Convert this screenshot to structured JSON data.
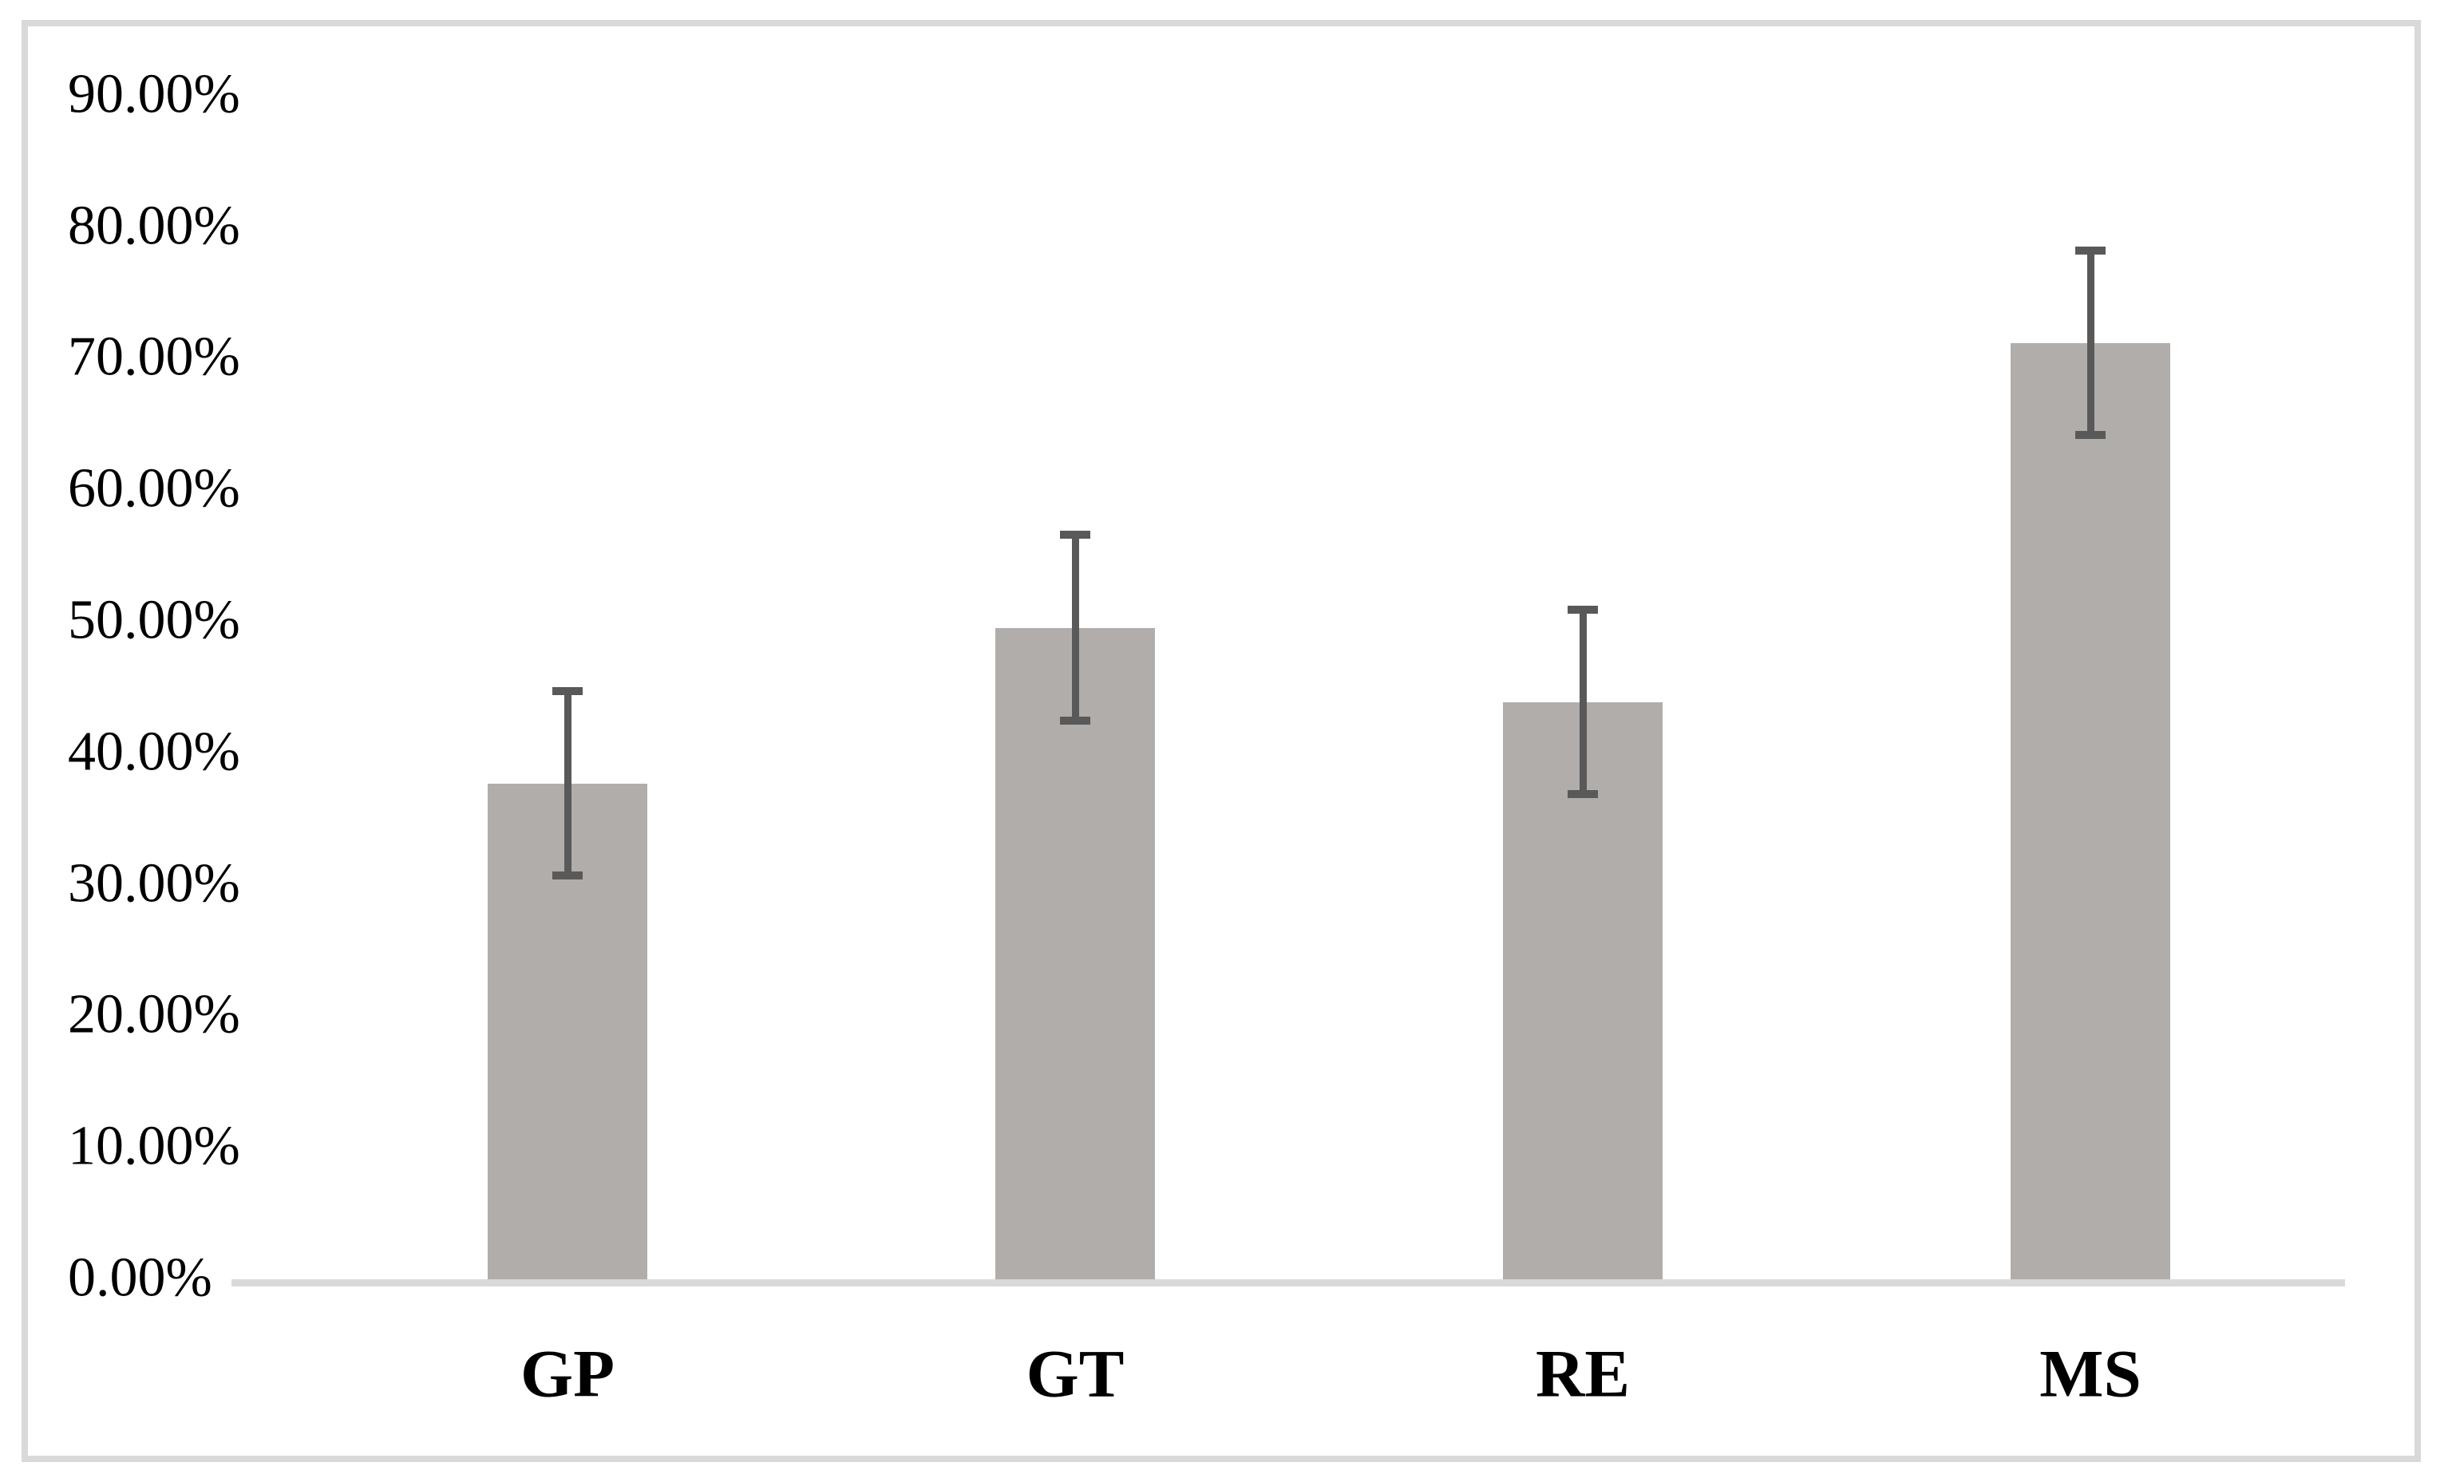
{
  "chart_data": {
    "type": "bar",
    "title": "",
    "xlabel": "",
    "ylabel": "",
    "categories": [
      "GP",
      "GT",
      "RE",
      "MS"
    ],
    "values": [
      37.7,
      49.5,
      43.9,
      71.2
    ],
    "error_low": [
      30.4,
      42.2,
      36.6,
      63.9
    ],
    "error_high": [
      45.0,
      56.9,
      51.2,
      78.5
    ],
    "y_ticks": [
      {
        "value": 0,
        "label": "0.00%"
      },
      {
        "value": 10,
        "label": "10.00%"
      },
      {
        "value": 20,
        "label": "20.00%"
      },
      {
        "value": 30,
        "label": "30.00%"
      },
      {
        "value": 40,
        "label": "40.00%"
      },
      {
        "value": 50,
        "label": "50.00%"
      },
      {
        "value": 60,
        "label": "60.00%"
      },
      {
        "value": 70,
        "label": "70.00%"
      },
      {
        "value": 80,
        "label": "80.00%"
      },
      {
        "value": 90,
        "label": "90.00%"
      }
    ],
    "ylim": [
      0,
      90
    ],
    "grid": false,
    "legend": false,
    "bar_color": "#b1adab",
    "error_bar_color": "#595959",
    "axis_line_color": "#d9d9d9",
    "frame_border_color": "#d9d9d9",
    "text_color": "#000000"
  }
}
